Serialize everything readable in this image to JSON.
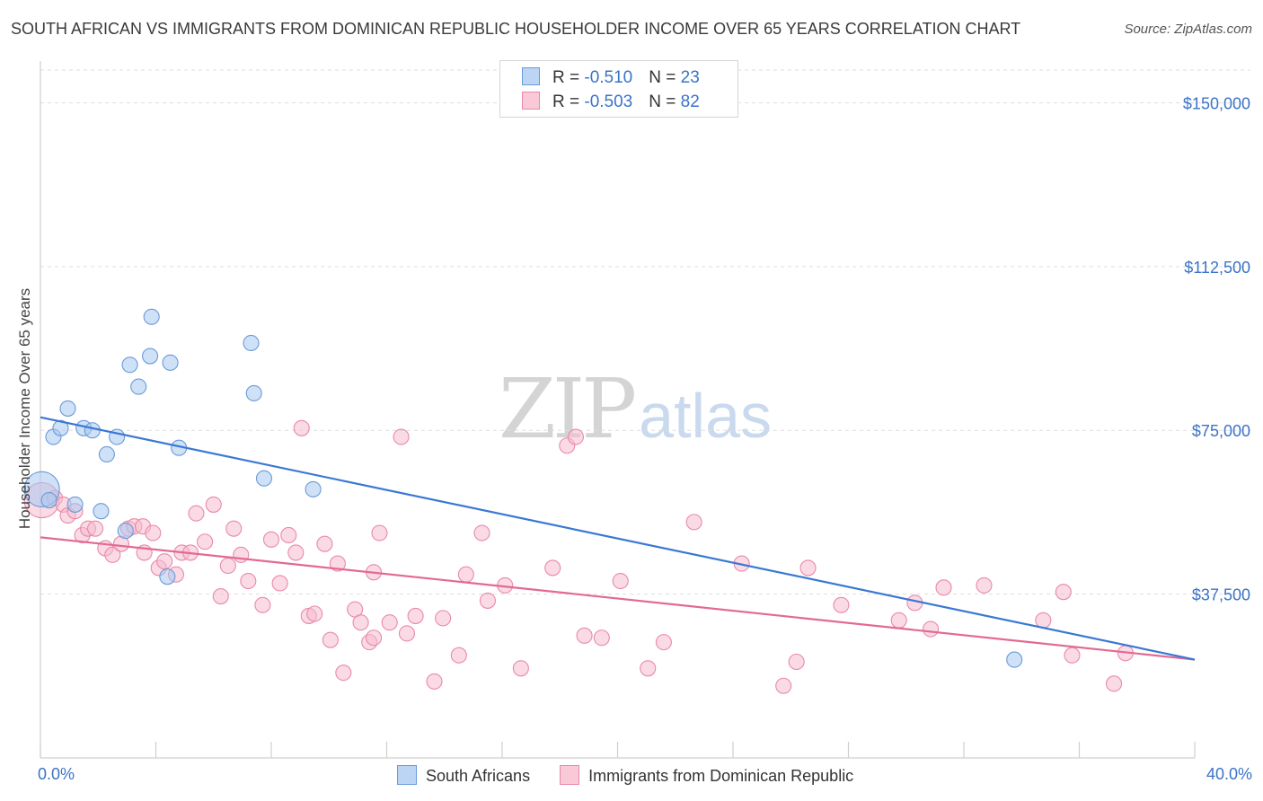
{
  "title": "SOUTH AFRICAN VS IMMIGRANTS FROM DOMINICAN REPUBLIC HOUSEHOLDER INCOME OVER 65 YEARS CORRELATION CHART",
  "source": "Source: ZipAtlas.com",
  "watermark": {
    "zip": "ZIP",
    "atlas": "atlas"
  },
  "legend": {
    "rows": [
      {
        "r_label": "R = ",
        "r_value": "-0.510",
        "n_label": "N = ",
        "n_value": "23"
      },
      {
        "r_label": "R = ",
        "r_value": "-0.503",
        "n_label": "N = ",
        "n_value": "82"
      }
    ]
  },
  "bottom_legend": [
    "South Africans",
    "Immigrants from Dominican Republic"
  ],
  "colors": {
    "blue_fill": "#a8c8f0",
    "blue_stroke": "#6a9ad8",
    "blue_line": "#3a78d4",
    "pink_fill": "#f6bccd",
    "pink_stroke": "#e98aa8",
    "pink_line": "#e26a92",
    "tick_label": "#3b73c7",
    "grid": "#dddddd"
  },
  "chart_data": {
    "type": "scatter",
    "title": "SOUTH AFRICAN VS IMMIGRANTS FROM DOMINICAN REPUBLIC HOUSEHOLDER INCOME OVER 65 YEARS CORRELATION CHART",
    "xlabel": "",
    "ylabel": "Householder Income Over 65 years",
    "xlim": [
      0,
      40
    ],
    "ylim": [
      0,
      157500
    ],
    "x_tick_labels": [
      "0.0%",
      "40.0%"
    ],
    "y_ticks": [
      37500,
      75000,
      112500,
      150000
    ],
    "y_tick_labels": [
      "$37,500",
      "$75,000",
      "$112,500",
      "$150,000"
    ],
    "grid": true,
    "legend_position": "top-center",
    "series": [
      {
        "name": "South Africans",
        "r": -0.51,
        "n": 23,
        "trend": {
          "x": [
            0,
            40
          ],
          "y": [
            78000,
            22500
          ]
        },
        "points": [
          [
            0.05,
            61500,
            2.3
          ],
          [
            0.3,
            59000,
            1
          ],
          [
            0.45,
            73500,
            1
          ],
          [
            0.7,
            75500,
            1
          ],
          [
            0.95,
            80000,
            1
          ],
          [
            1.2,
            58000,
            1
          ],
          [
            1.5,
            75500,
            1
          ],
          [
            1.8,
            75000,
            1
          ],
          [
            2.1,
            56500,
            1
          ],
          [
            2.3,
            69500,
            1
          ],
          [
            2.65,
            73500,
            1
          ],
          [
            2.95,
            52000,
            1
          ],
          [
            3.1,
            90000,
            1
          ],
          [
            3.4,
            85000,
            1
          ],
          [
            3.85,
            101000,
            1
          ],
          [
            3.8,
            92000,
            1
          ],
          [
            4.4,
            41500,
            1
          ],
          [
            4.5,
            90500,
            1
          ],
          [
            4.8,
            71000,
            1
          ],
          [
            7.3,
            95000,
            1
          ],
          [
            7.4,
            83500,
            1
          ],
          [
            7.75,
            64000,
            1
          ],
          [
            9.45,
            61500,
            1
          ],
          [
            33.75,
            22500,
            1
          ]
        ]
      },
      {
        "name": "Immigrants from Dominican Republic",
        "r": -0.503,
        "n": 82,
        "trend": {
          "x": [
            0,
            40
          ],
          "y": [
            50500,
            22500
          ]
        },
        "points": [
          [
            0.05,
            59000,
            2.3
          ],
          [
            0.5,
            59500,
            1
          ],
          [
            0.8,
            58000,
            1
          ],
          [
            0.95,
            55500,
            1
          ],
          [
            1.2,
            56500,
            1
          ],
          [
            1.45,
            51000,
            1
          ],
          [
            1.65,
            52500,
            1
          ],
          [
            1.9,
            52500,
            1
          ],
          [
            2.25,
            48000,
            1
          ],
          [
            2.5,
            46500,
            1
          ],
          [
            2.8,
            49000,
            1
          ],
          [
            3.05,
            52500,
            1
          ],
          [
            3.25,
            53000,
            1
          ],
          [
            3.55,
            53000,
            1
          ],
          [
            3.6,
            47000,
            1
          ],
          [
            3.9,
            51500,
            1
          ],
          [
            4.1,
            43500,
            1
          ],
          [
            4.3,
            45000,
            1
          ],
          [
            4.7,
            42000,
            1
          ],
          [
            4.9,
            47000,
            1
          ],
          [
            5.2,
            47000,
            1
          ],
          [
            5.4,
            56000,
            1
          ],
          [
            5.7,
            49500,
            1
          ],
          [
            6.0,
            58000,
            1
          ],
          [
            6.25,
            37000,
            1
          ],
          [
            6.5,
            44000,
            1
          ],
          [
            6.7,
            52500,
            1
          ],
          [
            6.95,
            46500,
            1
          ],
          [
            7.2,
            40500,
            1
          ],
          [
            7.7,
            35000,
            1
          ],
          [
            8.0,
            50000,
            1
          ],
          [
            8.3,
            40000,
            1
          ],
          [
            8.6,
            51000,
            1
          ],
          [
            8.85,
            47000,
            1
          ],
          [
            9.05,
            75500,
            1
          ],
          [
            9.3,
            32500,
            1
          ],
          [
            9.5,
            33000,
            1
          ],
          [
            9.85,
            49000,
            1
          ],
          [
            10.05,
            27000,
            1
          ],
          [
            10.3,
            44500,
            1
          ],
          [
            10.5,
            19500,
            1
          ],
          [
            10.9,
            34000,
            1
          ],
          [
            11.1,
            31000,
            1
          ],
          [
            11.4,
            26500,
            1
          ],
          [
            11.55,
            27500,
            1
          ],
          [
            11.55,
            42500,
            1
          ],
          [
            11.75,
            51500,
            1
          ],
          [
            12.1,
            31000,
            1
          ],
          [
            12.5,
            73500,
            1
          ],
          [
            12.7,
            28500,
            1
          ],
          [
            13.0,
            32500,
            1
          ],
          [
            13.65,
            17500,
            1
          ],
          [
            13.95,
            32000,
            1
          ],
          [
            14.5,
            23500,
            1
          ],
          [
            14.75,
            42000,
            1
          ],
          [
            15.3,
            51500,
            1
          ],
          [
            15.5,
            36000,
            1
          ],
          [
            16.1,
            39500,
            1
          ],
          [
            16.65,
            20500,
            1
          ],
          [
            17.75,
            43500,
            1
          ],
          [
            18.25,
            71500,
            1
          ],
          [
            18.55,
            73500,
            1
          ],
          [
            18.85,
            28000,
            1
          ],
          [
            19.45,
            27500,
            1
          ],
          [
            20.1,
            40500,
            1
          ],
          [
            21.05,
            20500,
            1
          ],
          [
            21.6,
            26500,
            1
          ],
          [
            22.65,
            54000,
            1
          ],
          [
            24.3,
            44500,
            1
          ],
          [
            25.75,
            16500,
            1
          ],
          [
            26.2,
            22000,
            1
          ],
          [
            26.6,
            43500,
            1
          ],
          [
            27.75,
            35000,
            1
          ],
          [
            29.75,
            31500,
            1
          ],
          [
            30.3,
            35500,
            1
          ],
          [
            30.85,
            29500,
            1
          ],
          [
            31.3,
            39000,
            1
          ],
          [
            32.7,
            39500,
            1
          ],
          [
            34.75,
            31500,
            1
          ],
          [
            35.45,
            38000,
            1
          ],
          [
            35.75,
            23500,
            1
          ],
          [
            37.2,
            17000,
            1
          ],
          [
            37.6,
            24000,
            1
          ]
        ]
      }
    ]
  }
}
